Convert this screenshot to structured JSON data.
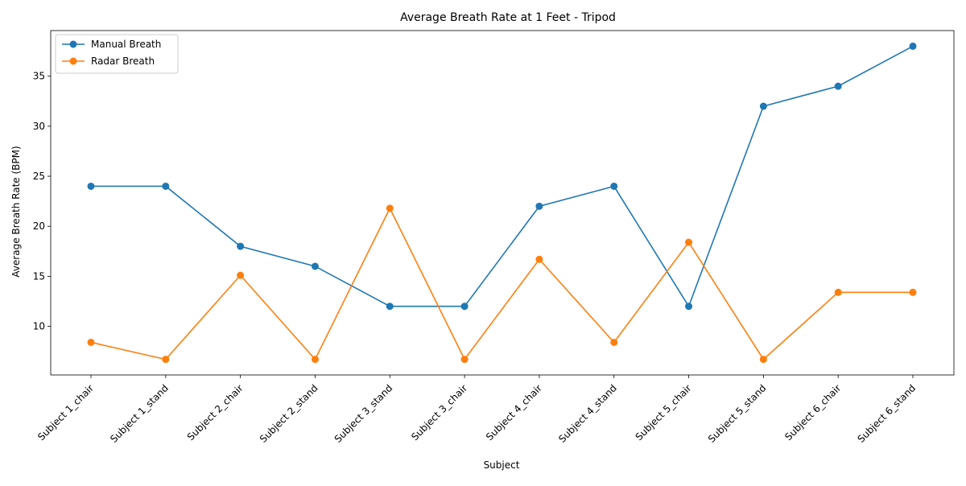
{
  "chart_data": {
    "type": "line",
    "title": "Average Breath Rate at 1 Feet - Tripod",
    "xlabel": "Subject",
    "ylabel": "Average Breath Rate (BPM)",
    "categories": [
      "Subject 1_chair",
      "Subject 1_stand",
      "Subject 2_chair",
      "Subject 2_stand",
      "Subject 3_stand",
      "Subject 3_chair",
      "Subject 4_chair",
      "Subject 4_stand",
      "Subject 5_chair",
      "Subject 5_stand",
      "Subject 6_chair",
      "Subject 6_stand"
    ],
    "series": [
      {
        "name": "Manual Breath",
        "color": "#1f77b4",
        "marker": "circle",
        "values": [
          24,
          24,
          18,
          16,
          12,
          12,
          22,
          24,
          12,
          32,
          34,
          38
        ]
      },
      {
        "name": "Radar Breath",
        "color": "#ff7f0e",
        "marker": "circle",
        "values": [
          8.4,
          6.7,
          15.1,
          6.7,
          21.8,
          6.7,
          16.7,
          8.4,
          18.4,
          6.7,
          13.4,
          13.4
        ]
      }
    ],
    "ylim": [
      5.14,
      39.56
    ],
    "yticks": [
      10,
      15,
      20,
      25,
      30,
      35
    ],
    "grid": false,
    "legend": "upper-left"
  }
}
